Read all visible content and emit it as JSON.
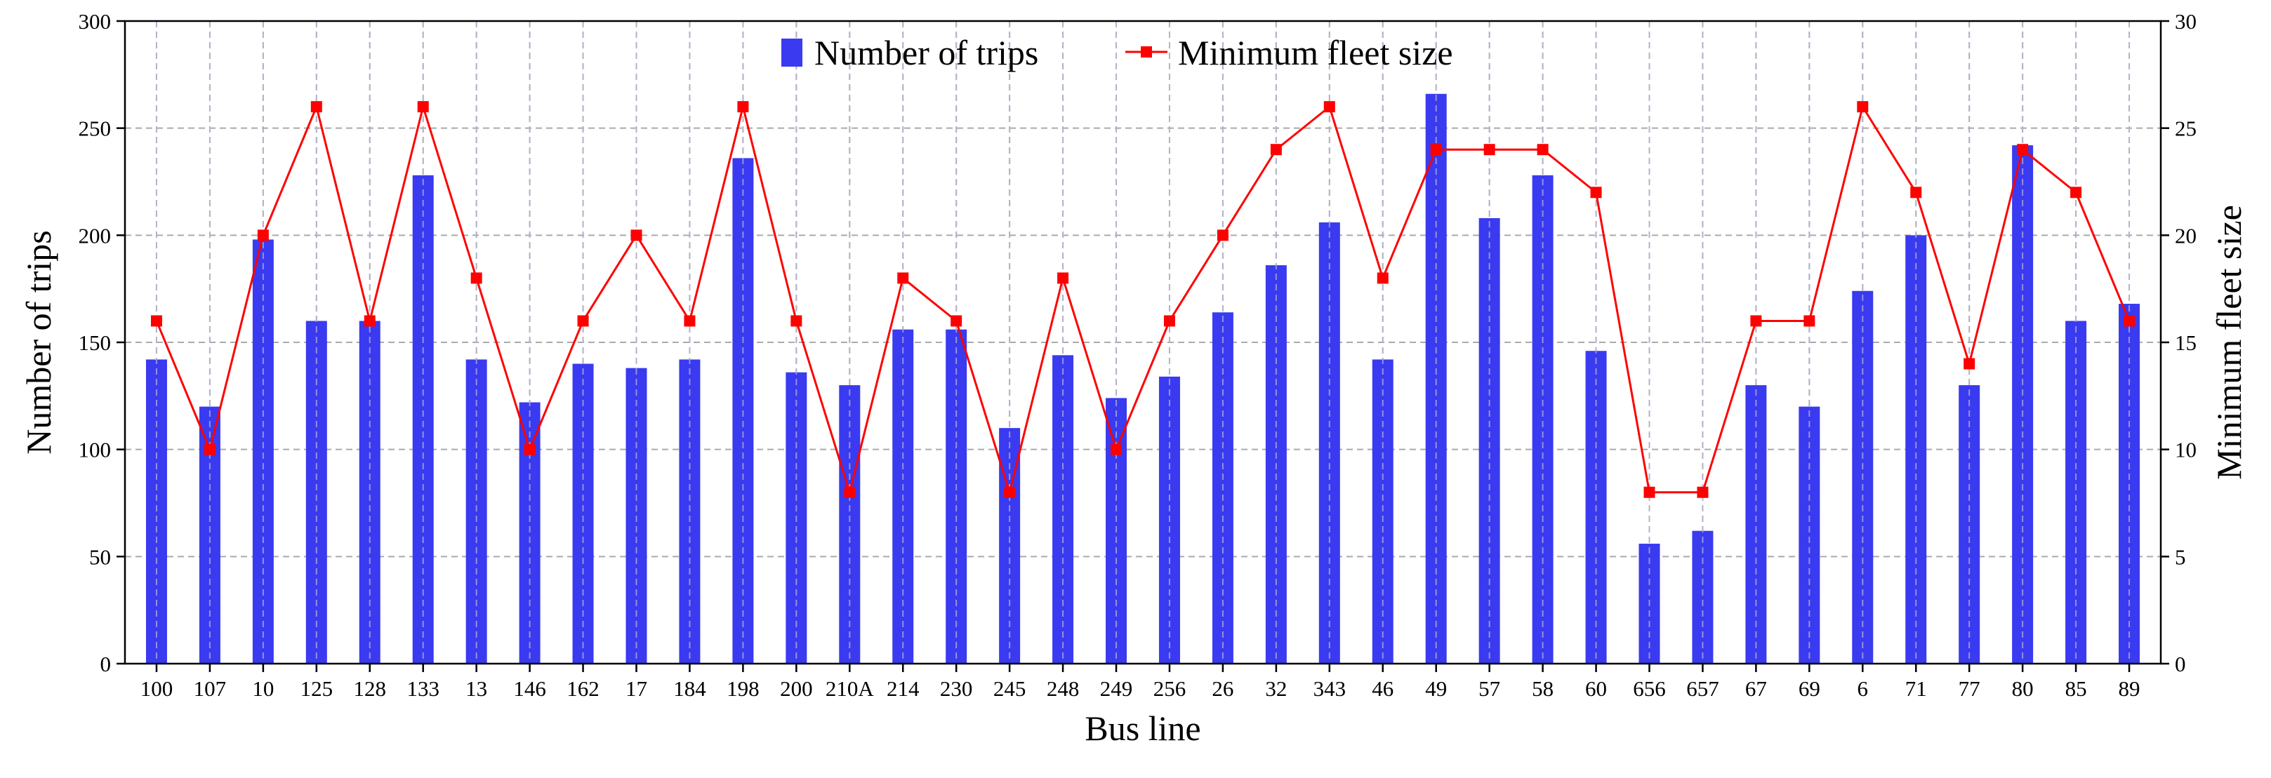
{
  "chart_data": {
    "type": "bar",
    "xlabel": "Bus line",
    "ylabel": "Number of trips",
    "y2label": "Minimum fleet size",
    "ylim": [
      0,
      300
    ],
    "y2lim": [
      0,
      30
    ],
    "yticks": [
      0,
      50,
      100,
      150,
      200,
      250,
      300
    ],
    "y2ticks": [
      0,
      5,
      10,
      15,
      20,
      25,
      30
    ],
    "grid": true,
    "legend_position": "top-center",
    "categories": [
      "100",
      "107",
      "10",
      "125",
      "128",
      "133",
      "13",
      "146",
      "162",
      "17",
      "184",
      "198",
      "200",
      "210A",
      "214",
      "230",
      "245",
      "248",
      "249",
      "256",
      "26",
      "32",
      "343",
      "46",
      "49",
      "57",
      "58",
      "60",
      "656",
      "657",
      "67",
      "69",
      "6",
      "71",
      "77",
      "80",
      "85",
      "89"
    ],
    "series": [
      {
        "name": "Number of trips",
        "type": "bar",
        "axis": "left",
        "color": "#3a3af0",
        "values": [
          142,
          120,
          198,
          160,
          160,
          228,
          142,
          122,
          140,
          138,
          142,
          236,
          136,
          130,
          156,
          156,
          110,
          144,
          124,
          134,
          164,
          186,
          206,
          142,
          266,
          208,
          228,
          146,
          56,
          62,
          130,
          120,
          174,
          200,
          130,
          242,
          160,
          168
        ]
      },
      {
        "name": "Minimum fleet size",
        "type": "line",
        "axis": "right",
        "color": "#ff0000",
        "values": [
          16,
          10,
          20,
          26,
          16,
          26,
          18,
          10,
          16,
          20,
          16,
          26,
          16,
          8,
          18,
          16,
          8,
          18,
          10,
          16,
          20,
          24,
          26,
          18,
          24,
          24,
          24,
          22,
          8,
          8,
          16,
          16,
          26,
          22,
          14,
          24,
          22,
          16
        ]
      }
    ]
  }
}
